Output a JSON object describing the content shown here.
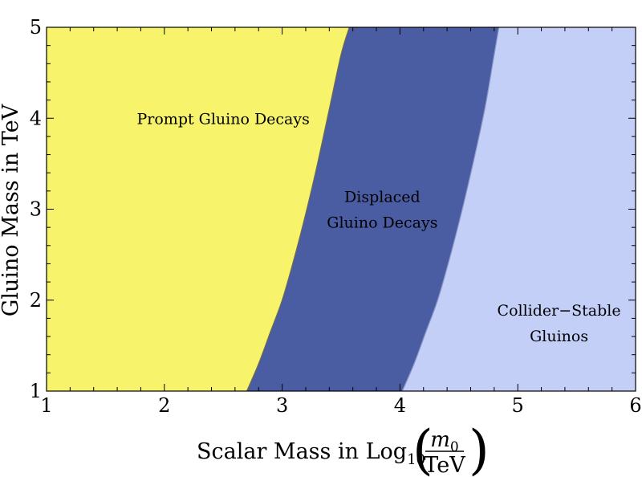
{
  "chart_data": {
    "type": "area",
    "title": "",
    "xlabel": {
      "prefix": "Scalar Mass in Log",
      "subscript": "10",
      "numerator": "m",
      "numerator_sub": "0",
      "denominator": "TeV"
    },
    "ylabel": "Gluino Mass in TeV",
    "xlim": [
      1,
      6
    ],
    "ylim": [
      1,
      5
    ],
    "xticks": [
      "1",
      "2",
      "3",
      "4",
      "5",
      "6"
    ],
    "yticks": [
      "1",
      "2",
      "3",
      "4",
      "5"
    ],
    "grid": false,
    "regions": [
      {
        "name": "Prompt Gluino Decays",
        "label_lines": [
          "Prompt Gluino Decays"
        ],
        "label_at": [
          2.5,
          4.0
        ],
        "color": "#f7f46b"
      },
      {
        "name": "Displaced Gluino Decays",
        "label_lines": [
          "Displaced",
          "Gluino Decays"
        ],
        "label_at": [
          3.85,
          3.0
        ],
        "color": "#4a5ca2"
      },
      {
        "name": "Collider-Stable Gluinos",
        "label_lines": [
          "Collider−Stable",
          "Gluinos"
        ],
        "label_at": [
          5.35,
          1.75
        ],
        "color": "#c3cff7"
      }
    ],
    "boundaries": [
      {
        "name": "prompt-displaced boundary",
        "points": [
          [
            2.7,
            1.0
          ],
          [
            2.8,
            1.3
          ],
          [
            2.9,
            1.65
          ],
          [
            3.0,
            2.0
          ],
          [
            3.1,
            2.45
          ],
          [
            3.2,
            2.95
          ],
          [
            3.3,
            3.5
          ],
          [
            3.4,
            4.1
          ],
          [
            3.5,
            4.7
          ],
          [
            3.57,
            5.0
          ]
        ]
      },
      {
        "name": "displaced-stable boundary",
        "points": [
          [
            4.02,
            1.0
          ],
          [
            4.12,
            1.3
          ],
          [
            4.22,
            1.65
          ],
          [
            4.32,
            2.0
          ],
          [
            4.42,
            2.45
          ],
          [
            4.52,
            2.95
          ],
          [
            4.62,
            3.5
          ],
          [
            4.72,
            4.1
          ],
          [
            4.8,
            4.7
          ],
          [
            4.84,
            5.0
          ]
        ]
      }
    ]
  }
}
